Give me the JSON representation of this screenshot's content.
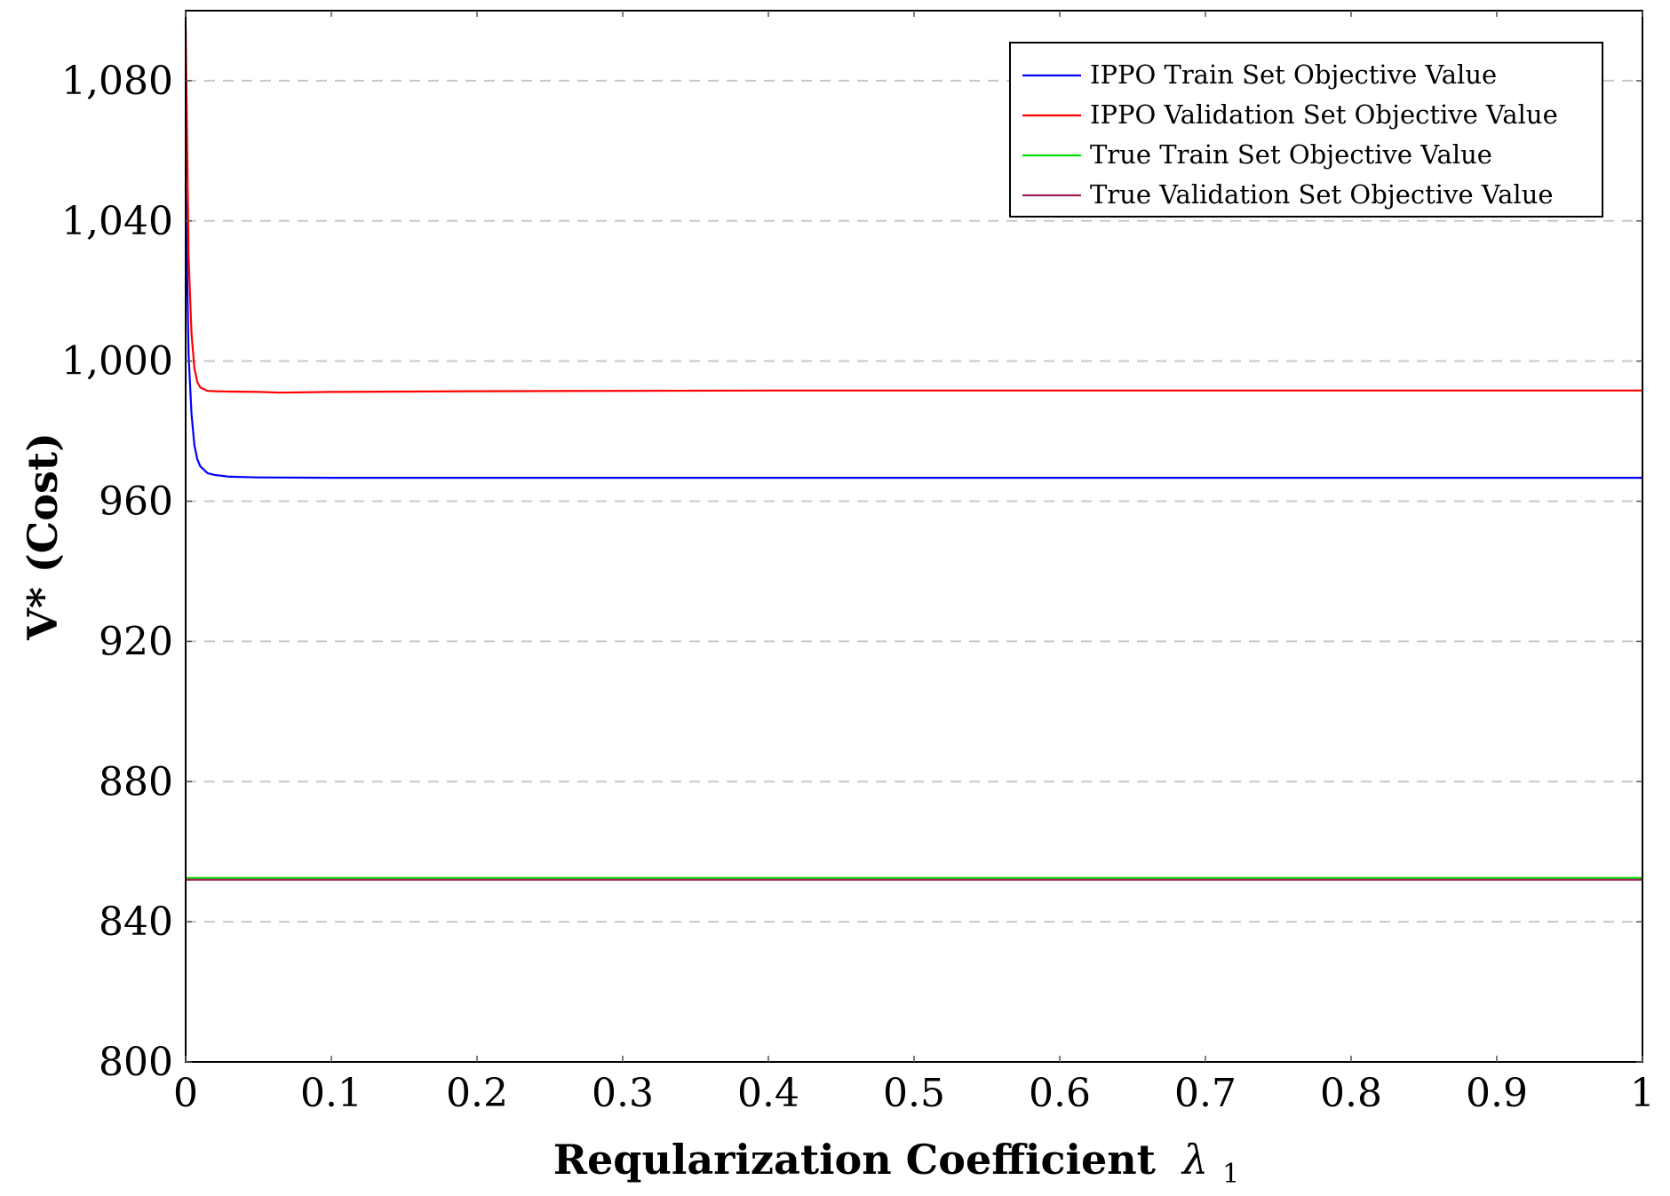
{
  "chart_data": {
    "type": "line",
    "title": "",
    "xlabel": "Reqularization Coefficient",
    "xlabel_symbol": "λ",
    "xlabel_subscript": "1",
    "ylabel": "V* (Cost)",
    "xlim": [
      0,
      1
    ],
    "ylim": [
      800,
      1100
    ],
    "x_ticks": [
      0,
      0.1,
      0.2,
      0.3,
      0.4,
      0.5,
      0.6,
      0.7,
      0.8,
      0.9,
      1
    ],
    "x_tick_labels": [
      "0",
      "0.1",
      "0.2",
      "0.3",
      "0.4",
      "0.5",
      "0.6",
      "0.7",
      "0.8",
      "0.9",
      "1"
    ],
    "y_ticks": [
      800,
      840,
      880,
      920,
      960,
      1000,
      1040,
      1080
    ],
    "y_tick_labels": [
      "800",
      "840",
      "880",
      "920",
      "960",
      "1,000",
      "1,040",
      "1,080"
    ],
    "grid": "horizontal-dashed",
    "legend_position": "top-right",
    "series": [
      {
        "name": "IPPO Train Set Objective Value",
        "color": "#0000ff",
        "x": [
          0,
          0.002,
          0.004,
          0.006,
          0.008,
          0.01,
          0.015,
          0.02,
          0.03,
          0.05,
          0.1,
          0.2,
          0.4,
          0.6,
          0.8,
          1.0
        ],
        "y": [
          1050,
          1002,
          985,
          976,
          972,
          970,
          968,
          967.5,
          967,
          966.8,
          966.7,
          966.7,
          966.7,
          966.7,
          966.7,
          966.7
        ]
      },
      {
        "name": "IPPO Validation Set Objective Value",
        "color": "#ff0000",
        "x": [
          0,
          0.002,
          0.004,
          0.006,
          0.008,
          0.01,
          0.015,
          0.02,
          0.03,
          0.05,
          0.065,
          0.1,
          0.2,
          0.4,
          0.6,
          0.8,
          1.0
        ],
        "y": [
          1096,
          1030,
          1008,
          998,
          994,
          992.5,
          991.5,
          991.4,
          991.3,
          991.2,
          991,
          991.2,
          991.4,
          991.6,
          991.6,
          991.6,
          991.6
        ]
      },
      {
        "name": "True Train Set Objective Value",
        "color": "#00dd00",
        "x": [
          0,
          1
        ],
        "y": [
          852.5,
          852.5
        ]
      },
      {
        "name": "True Validation Set Objective Value",
        "color": "#a0205a",
        "x": [
          0,
          1
        ],
        "y": [
          852,
          852
        ]
      }
    ]
  }
}
